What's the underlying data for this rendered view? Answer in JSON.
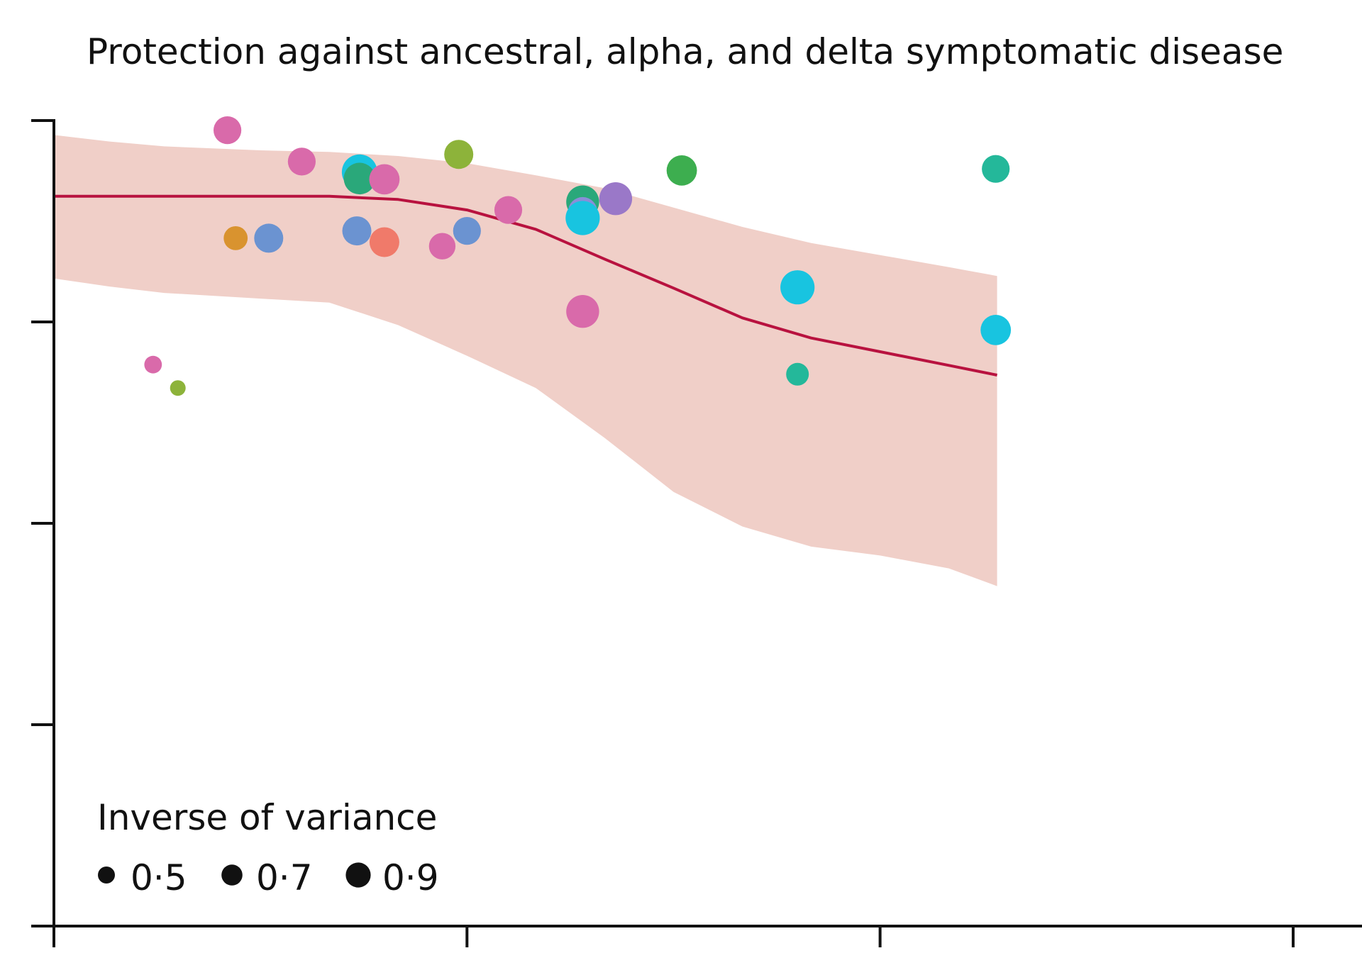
{
  "chart_data": {
    "type": "scatter",
    "title": "Protection against ancestral, alpha, and delta symptomatic disease",
    "xlabel": "",
    "ylabel": "",
    "xlim": [
      0,
      9.5
    ],
    "ylim": [
      0,
      100
    ],
    "x_ticks": [
      0,
      3,
      6,
      9
    ],
    "y_ticks": [
      0,
      25,
      50,
      75,
      100
    ],
    "grid": false,
    "colors": {
      "band": "#f0cfc8",
      "trend": "#b8123f",
      "axis": "#111111"
    },
    "band": {
      "x": [
        0,
        0.4,
        0.8,
        1.5,
        2,
        2.5,
        3,
        3.5,
        4,
        4.5,
        5,
        5.5,
        6,
        6.5,
        6.85
      ],
      "upper": [
        98.2,
        97.4,
        96.8,
        96.3,
        96.1,
        95.6,
        94.7,
        93.2,
        91.6,
        89.2,
        86.8,
        84.8,
        83.3,
        81.8,
        80.7
      ],
      "lower": [
        80.4,
        79.4,
        78.6,
        77.9,
        77.4,
        74.6,
        70.8,
        66.8,
        60.6,
        53.9,
        49.6,
        47.1,
        46.0,
        44.4,
        42.2
      ]
    },
    "trend": {
      "x": [
        0,
        0.5,
        1,
        1.5,
        2,
        2.5,
        3,
        3.5,
        4,
        4.5,
        5,
        5.5,
        6,
        6.5,
        6.85
      ],
      "y": [
        90.6,
        90.6,
        90.6,
        90.6,
        90.6,
        90.2,
        88.9,
        86.5,
        82.8,
        79.2,
        75.5,
        73.0,
        71.3,
        69.6,
        68.4
      ]
    },
    "points": [
      {
        "x": 0.72,
        "y": 69.7,
        "weight": 0.3,
        "color": "#d96aaa"
      },
      {
        "x": 0.9,
        "y": 66.8,
        "weight": 0.22,
        "color": "#8db33a"
      },
      {
        "x": 1.26,
        "y": 98.8,
        "weight": 0.7,
        "color": "#d96aaa"
      },
      {
        "x": 1.32,
        "y": 85.4,
        "weight": 0.55,
        "color": "#d9932f"
      },
      {
        "x": 1.56,
        "y": 85.4,
        "weight": 0.75,
        "color": "#6b93d1"
      },
      {
        "x": 1.8,
        "y": 94.9,
        "weight": 0.7,
        "color": "#d96aaa"
      },
      {
        "x": 2.2,
        "y": 86.3,
        "weight": 0.75,
        "color": "#6b93d1"
      },
      {
        "x": 2.22,
        "y": 93.6,
        "weight": 1.0,
        "color": "#18c4e0"
      },
      {
        "x": 2.22,
        "y": 92.8,
        "weight": 0.85,
        "color": "#2aa87a"
      },
      {
        "x": 2.4,
        "y": 92.7,
        "weight": 0.8,
        "color": "#d96aaa"
      },
      {
        "x": 2.4,
        "y": 84.9,
        "weight": 0.78,
        "color": "#f07a6a"
      },
      {
        "x": 2.82,
        "y": 84.4,
        "weight": 0.65,
        "color": "#d96aaa"
      },
      {
        "x": 2.94,
        "y": 95.8,
        "weight": 0.75,
        "color": "#8db33a"
      },
      {
        "x": 3.0,
        "y": 86.3,
        "weight": 0.7,
        "color": "#6b93d1"
      },
      {
        "x": 3.3,
        "y": 88.9,
        "weight": 0.7,
        "color": "#d96aaa"
      },
      {
        "x": 3.84,
        "y": 89.9,
        "weight": 0.9,
        "color": "#2aa87a"
      },
      {
        "x": 3.84,
        "y": 88.7,
        "weight": 0.75,
        "color": "#8a8ed8"
      },
      {
        "x": 3.84,
        "y": 87.9,
        "weight": 0.95,
        "color": "#18c4e0"
      },
      {
        "x": 3.84,
        "y": 76.3,
        "weight": 0.9,
        "color": "#d96aaa"
      },
      {
        "x": 4.08,
        "y": 90.3,
        "weight": 0.9,
        "color": "#9a78c8"
      },
      {
        "x": 4.56,
        "y": 93.8,
        "weight": 0.8,
        "color": "#3dae4f"
      },
      {
        "x": 5.4,
        "y": 79.3,
        "weight": 0.95,
        "color": "#18c4e0"
      },
      {
        "x": 5.4,
        "y": 68.5,
        "weight": 0.5,
        "color": "#24b89a"
      },
      {
        "x": 6.84,
        "y": 94.0,
        "weight": 0.7,
        "color": "#24b89a"
      },
      {
        "x": 6.84,
        "y": 74.0,
        "weight": 0.8,
        "color": "#18c4e0"
      }
    ],
    "legend": {
      "title": "Inverse of variance",
      "entries": [
        {
          "label": "0·5",
          "weight": 0.5
        },
        {
          "label": "0·7",
          "weight": 0.7
        },
        {
          "label": "0·9",
          "weight": 0.9
        }
      ],
      "position": "bottom-left"
    }
  }
}
